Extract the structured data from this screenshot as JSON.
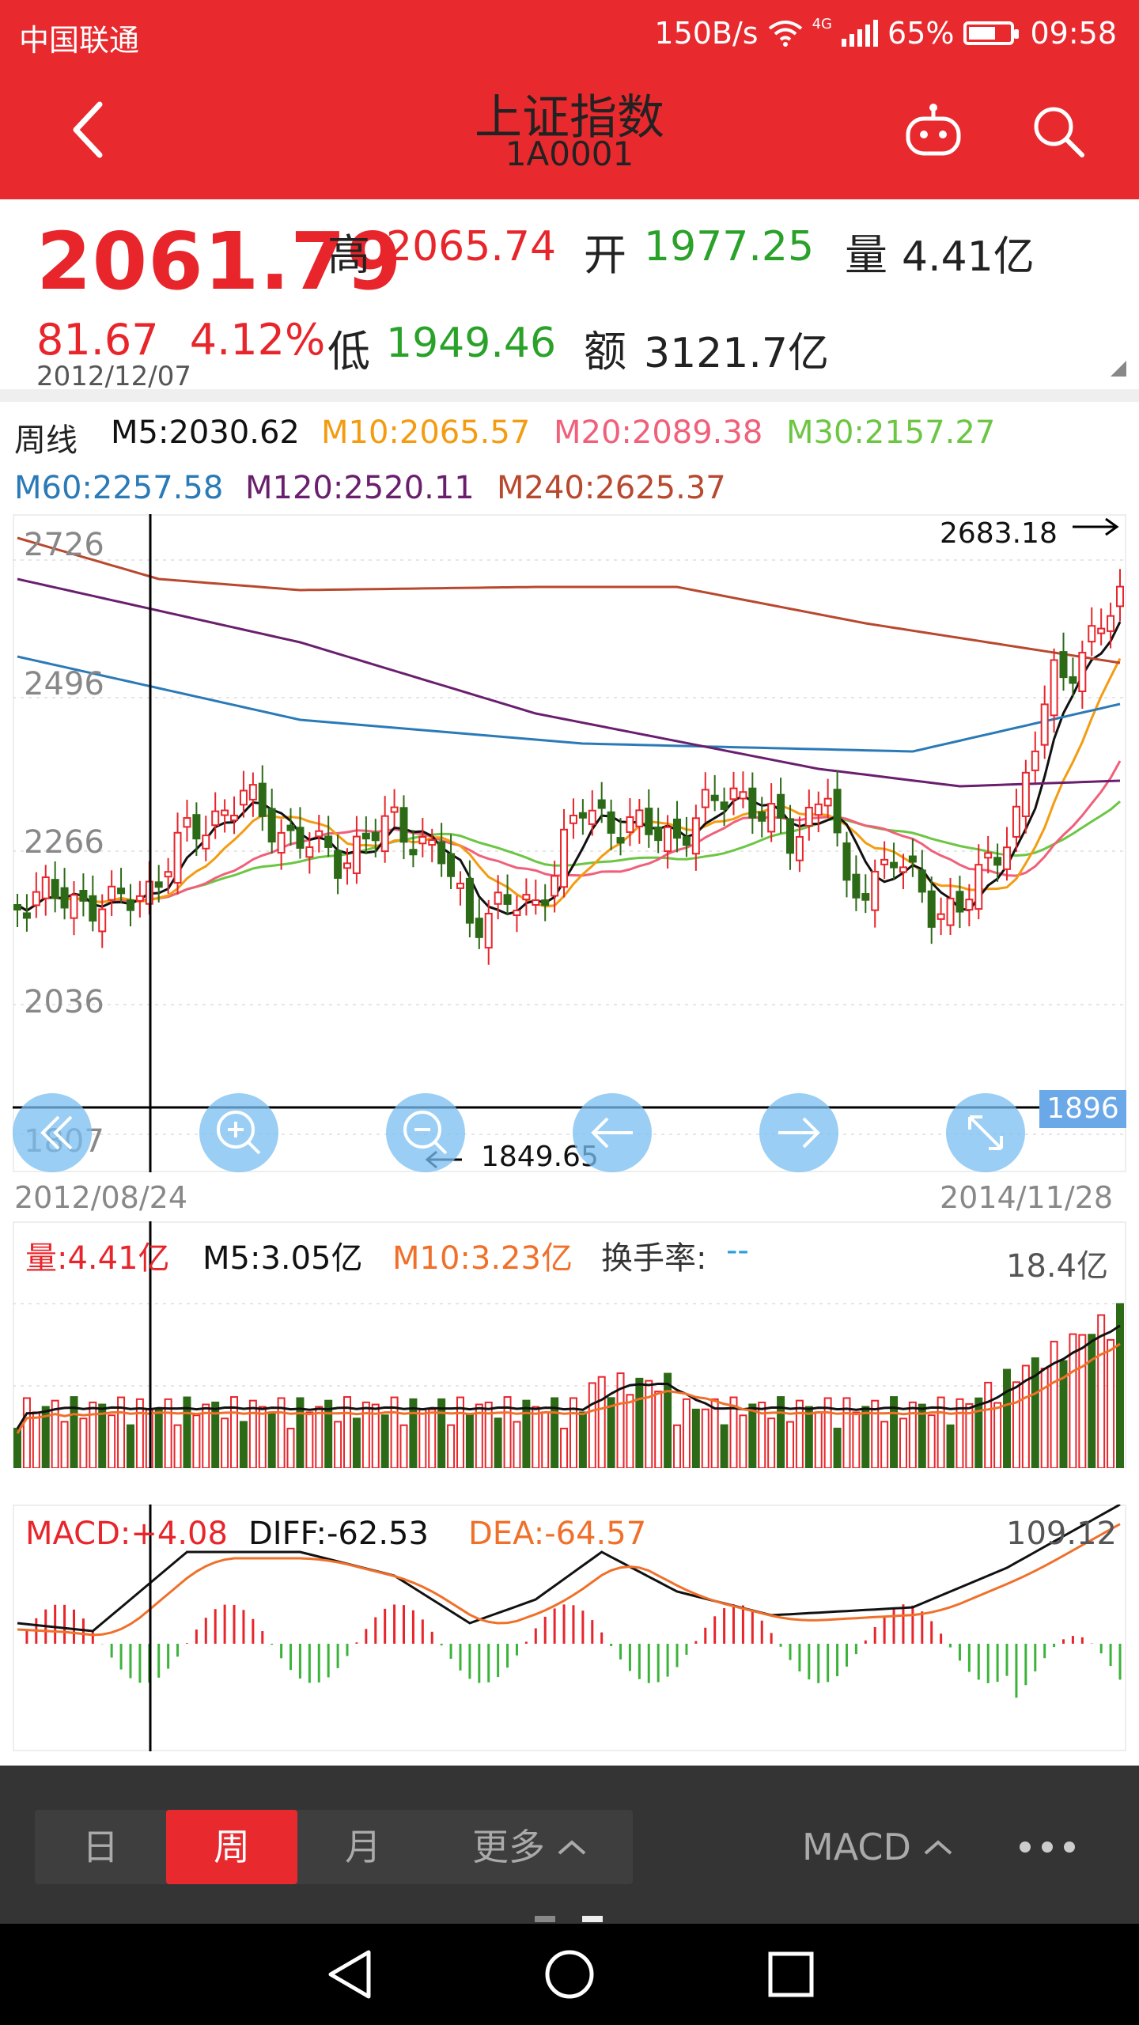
{
  "status_bar": {
    "carrier": "中国联通",
    "speed": "150B/s",
    "network": "4G",
    "battery": "65%",
    "time": "09:58",
    "battery_level": 0.65
  },
  "header": {
    "title": "上证指数",
    "code": "1A0001",
    "back_icon": "chevron-left-icon",
    "robot_icon": "robot-icon",
    "search_icon": "search-icon"
  },
  "quote": {
    "price": "2061.79",
    "change": "81.67",
    "change_pct": "4.12%",
    "date": "2012/12/07",
    "high_label": "高",
    "high": "2065.74",
    "low_label": "低",
    "low": "1949.46",
    "open_label": "开",
    "open": "1977.25",
    "volume_label": "量",
    "volume": "4.41亿",
    "amount_label": "额",
    "amount": "3121.7亿"
  },
  "ma_legend": {
    "period": "周线",
    "m5": "M5:2030.62",
    "m10": "M10:2065.57",
    "m20": "M20:2089.38",
    "m30": "M30:2157.27",
    "m60": "M60:2257.58",
    "m120": "M120:2520.11",
    "m240": "M240:2625.37"
  },
  "price_chart": {
    "y_labels": [
      "2726",
      "2496",
      "2266",
      "2036",
      "1807"
    ],
    "max_marker": "2683.18",
    "min_marker": "1849.65",
    "cursor_value": "1896",
    "start_date": "2012/08/24",
    "end_date": "2014/11/28"
  },
  "volume_legend": {
    "vol": "量:4.41亿",
    "m5": "M5:3.05亿",
    "m10": "M10:3.23亿",
    "turnover_label": "换手率:",
    "turnover_value": "--",
    "max": "18.4亿"
  },
  "macd_legend": {
    "macd": "MACD:+4.08",
    "diff": "DIFF:-62.53",
    "dea": "DEA:-64.57",
    "max": "109.12"
  },
  "nav_buttons": [
    "prev-icon",
    "zoom-in-icon",
    "zoom-out-icon",
    "left-arrow-icon",
    "right-arrow-icon",
    "expand-icon"
  ],
  "bottom_tabs": {
    "day": "日",
    "week": "周",
    "month": "月",
    "more": "更多",
    "indicator": "MACD",
    "menu_icon": "more-dots-icon"
  },
  "colors": {
    "header": "#e8292e",
    "up": "#e8252b",
    "down": "#2d6a17",
    "m5": "#111111",
    "m10": "#f39c12",
    "m20": "#f0607a",
    "m30": "#6cc644",
    "m60": "#2a7ab8",
    "m120": "#6a1f6e",
    "m240": "#b8482e"
  }
}
